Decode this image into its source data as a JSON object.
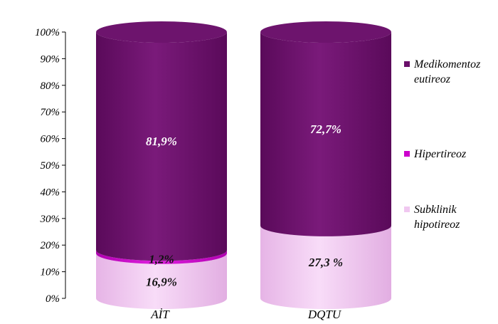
{
  "chart_data": {
    "type": "stacked-bar-3d-cylinder",
    "categories": [
      "AİT",
      "DQTU"
    ],
    "series": [
      {
        "name": "Subklinik hipotireoz",
        "color": "#f0c8f0",
        "values": [
          16.9,
          27.3
        ],
        "labels": [
          "16,9%",
          "27,3 %"
        ]
      },
      {
        "name": "Hipertireoz",
        "color": "#cc00cc",
        "values": [
          1.2,
          0
        ],
        "labels": [
          "1,2%",
          ""
        ]
      },
      {
        "name": "Medikomentoz eutireoz",
        "color": "#6a0f6a",
        "values": [
          81.9,
          72.7
        ],
        "labels": [
          "81,9%",
          "72,7%"
        ]
      }
    ],
    "legend": {
      "position": "right",
      "entries": [
        {
          "lines": [
            "Medikomentoz",
            "eutireoz"
          ],
          "color": "#6a0f6a"
        },
        {
          "lines": [
            "Hipertireoz"
          ],
          "color": "#cc00cc"
        },
        {
          "lines": [
            "Subklinik",
            "hipotireoz"
          ],
          "color": "#f0c8f0"
        }
      ]
    },
    "yticks": [
      "0%",
      "10%",
      "20%",
      "30%",
      "40%",
      "50%",
      "60%",
      "70%",
      "80%",
      "90%",
      "100%"
    ],
    "ylim": [
      0,
      100
    ],
    "grid": false
  }
}
